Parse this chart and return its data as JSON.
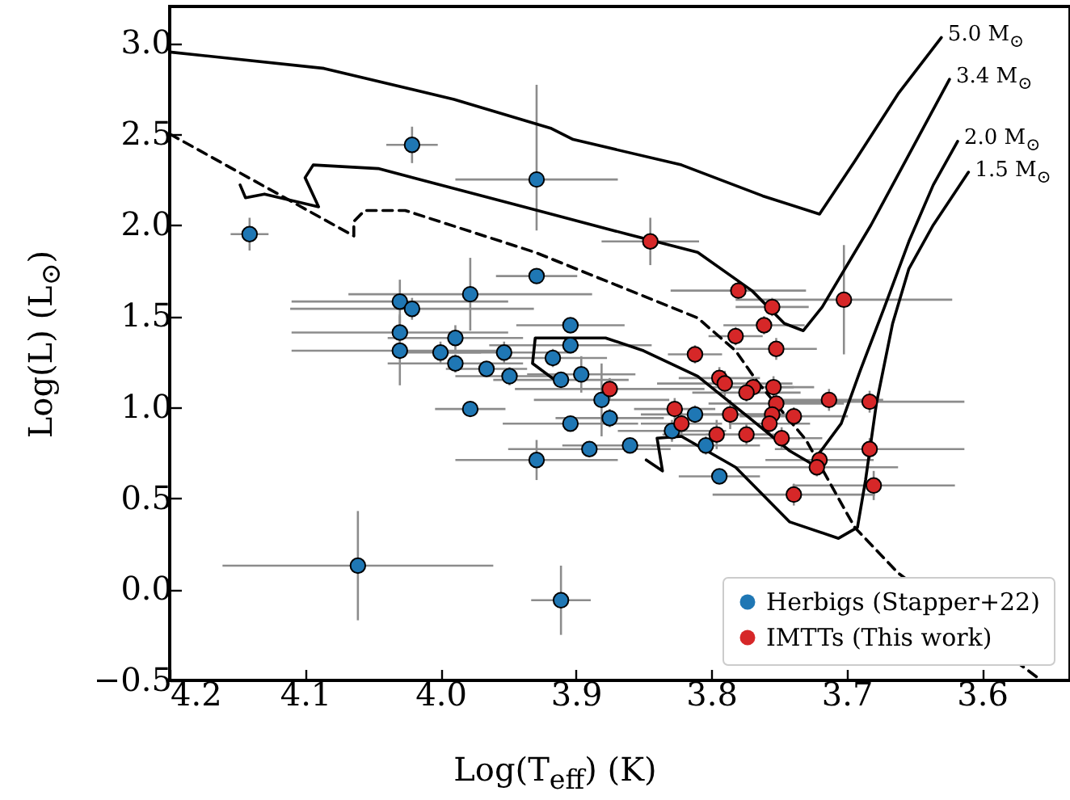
{
  "chart_data": {
    "type": "scatter",
    "xlabel": "Log(T$_{eff}$) (K)",
    "ylabel": "Log(L) (L$_{⊙}$)",
    "xlim": [
      4.2,
      3.535
    ],
    "ylim": [
      -0.5,
      3.2
    ],
    "xticks": [
      4.2,
      4.1,
      {
        "value": 4,
        "label": "4.0"
      },
      3.9,
      3.8,
      3.7,
      3.6
    ],
    "yticks": [
      {
        "value": -0.5,
        "label": "−0.5"
      },
      {
        "value": 0,
        "label": "0.0"
      },
      0.5,
      {
        "value": 1,
        "label": "1.0"
      },
      1.5,
      {
        "value": 2,
        "label": "2.0"
      },
      2.5,
      {
        "value": 3,
        "label": "3.0"
      }
    ],
    "legend": "bottom right",
    "annotations": [
      {
        "text": "5.0 M$_{⊙}$",
        "x": 3.63,
        "y": 3.03
      },
      {
        "text": "3.4 M$_{⊙}$",
        "x": 3.624,
        "y": 2.8
      },
      {
        "text": "2.0 M$_{⊙}$",
        "x": 3.618,
        "y": 2.46
      },
      {
        "text": "1.5 M$_{⊙}$",
        "x": 3.61,
        "y": 2.29
      }
    ],
    "series": [
      {
        "name": "Herbigs (Stapper+22)",
        "color": "#1f77b4",
        "marker": "circle",
        "x": [
          4.021,
          3.929,
          4.141,
          3.929,
          3.978,
          4.03,
          4.021,
          4.03,
          3.989,
          4.03,
          4.0,
          3.989,
          3.966,
          3.953,
          3.949,
          3.978,
          3.929,
          4.061,
          3.911,
          3.904,
          3.904,
          3.917,
          3.911,
          3.896,
          3.881,
          3.875,
          3.904,
          3.89,
          3.86,
          3.812,
          3.829,
          3.804,
          3.794
        ],
        "values": [
          2.44,
          2.25,
          1.95,
          1.72,
          1.62,
          1.58,
          1.54,
          1.41,
          1.38,
          1.31,
          1.3,
          1.24,
          1.21,
          1.3,
          1.17,
          0.99,
          0.71,
          0.13,
          -0.06,
          1.45,
          1.34,
          1.27,
          1.15,
          1.18,
          1.04,
          0.94,
          0.91,
          0.77,
          0.79,
          0.96,
          0.87,
          0.79,
          0.62
        ],
        "xerrors": [
          0.019,
          0.06,
          0.014,
          0.03,
          0.09,
          0.08,
          0.09,
          0.08,
          0.05,
          0.08,
          0.03,
          0.05,
          0.03,
          0.05,
          0.04,
          0.026,
          0.06,
          0.1,
          0.022,
          0.04,
          0.06,
          0.04,
          0.05,
          0.04,
          0.05,
          0.04,
          0.05,
          0.06,
          0.05,
          0.04,
          0.04,
          0.04,
          0.03
        ],
        "errors": [
          0.1,
          [
            1.97,
            2.77
          ],
          0.09,
          0.04,
          0.2,
          0.12,
          0.06,
          0.1,
          0.07,
          0.19,
          0.06,
          0.05,
          0.04,
          0.06,
          0.05,
          0.04,
          0.11,
          0.3,
          0.19,
          0.04,
          0.04,
          0.05,
          0.04,
          0.1,
          0.2,
          0.05,
          0.04,
          0.04,
          0.04,
          0.05,
          0.06,
          0.05,
          0.04
        ]
      },
      {
        "name": "IMTTs (This work)",
        "color": "#d62728",
        "marker": "circle",
        "x": [
          3.845,
          3.78,
          3.755,
          3.702,
          3.761,
          3.782,
          3.752,
          3.812,
          3.794,
          3.79,
          3.875,
          3.769,
          3.774,
          3.754,
          3.752,
          3.713,
          3.683,
          3.827,
          3.822,
          3.786,
          3.755,
          3.739,
          3.757,
          3.796,
          3.774,
          3.748,
          3.72,
          3.722,
          3.683,
          3.739,
          3.68
        ],
        "values": [
          1.91,
          1.64,
          1.55,
          1.59,
          1.45,
          1.39,
          1.32,
          1.29,
          1.16,
          1.13,
          1.1,
          1.11,
          1.08,
          1.11,
          1.02,
          1.04,
          1.03,
          0.99,
          0.91,
          0.96,
          0.96,
          0.95,
          0.91,
          0.85,
          0.85,
          0.83,
          0.71,
          0.67,
          0.77,
          0.52,
          0.57
        ],
        "xerrors": [
          0.036,
          0.05,
          0.027,
          0.08,
          0.03,
          0.02,
          0.03,
          0.02,
          0.03,
          0.05,
          0.07,
          0.03,
          0.04,
          0.03,
          0.05,
          0.04,
          0.07,
          0.03,
          0.03,
          0.03,
          0.02,
          0.04,
          0.03,
          0.04,
          0.03,
          0.03,
          0.04,
          0.06,
          0.07,
          0.06,
          0.06
        ],
        "errors": [
          0.13,
          0.05,
          0.05,
          0.3,
          0.05,
          0.05,
          0.06,
          0.05,
          0.06,
          0.07,
          0.06,
          0.05,
          0.05,
          0.06,
          0.08,
          0.06,
          0.06,
          0.06,
          0.06,
          0.08,
          0.08,
          0.05,
          0.06,
          0.08,
          0.06,
          0.06,
          0.05,
          0.05,
          0.06,
          0.06,
          0.08
        ]
      },
      {
        "type": "line",
        "color": "#000000",
        "x": [
          4.2,
          4.086,
          3.99,
          3.918,
          3.902,
          3.822,
          3.762,
          3.72,
          3.694,
          3.662,
          3.63
        ],
        "values": [
          2.95,
          2.86,
          2.69,
          2.53,
          2.47,
          2.33,
          2.16,
          2.06,
          2.35,
          2.72,
          3.03
        ]
      },
      {
        "type": "line",
        "color": "#000000",
        "x": [
          4.148,
          4.144,
          4.13,
          4.09,
          4.1,
          4.094,
          4.046,
          3.918,
          3.862,
          3.81,
          3.77,
          3.746,
          3.732,
          3.718,
          3.682,
          3.624
        ],
        "values": [
          2.22,
          2.15,
          2.17,
          2.1,
          2.26,
          2.33,
          2.31,
          2.06,
          1.95,
          1.85,
          1.64,
          1.46,
          1.42,
          1.55,
          2.0,
          2.8
        ]
      },
      {
        "type": "line",
        "color": "#000000",
        "x": [
          3.912,
          3.932,
          3.93,
          3.878,
          3.85,
          3.81,
          3.77,
          3.742,
          3.726,
          3.704,
          3.69,
          3.672,
          3.654,
          3.636,
          3.618
        ],
        "values": [
          1.13,
          1.24,
          1.38,
          1.38,
          1.31,
          1.17,
          0.93,
          0.76,
          0.69,
          0.91,
          1.2,
          1.55,
          1.91,
          2.22,
          2.46
        ]
      },
      {
        "type": "line",
        "color": "#000000",
        "x": [
          3.848,
          3.836,
          3.84,
          3.822,
          3.782,
          3.742,
          3.706,
          3.692,
          3.686,
          3.678,
          3.666,
          3.654,
          3.636,
          3.61
        ],
        "values": [
          0.71,
          0.65,
          0.83,
          0.84,
          0.67,
          0.37,
          0.28,
          0.34,
          0.6,
          1.02,
          1.46,
          1.76,
          2.0,
          2.29
        ]
      },
      {
        "type": "line",
        "color": "#000000",
        "line_style": "dashed",
        "x": [
          4.2,
          4.064,
          4.064,
          4.056,
          4.026,
          3.93,
          3.89,
          3.81,
          3.782,
          3.766,
          3.73,
          3.694,
          3.662,
          3.558
        ],
        "values": [
          2.5,
          1.94,
          2.02,
          2.08,
          2.08,
          1.85,
          1.73,
          1.49,
          1.31,
          1.14,
          0.82,
          0.34,
          0.09,
          -0.49
        ]
      }
    ]
  }
}
